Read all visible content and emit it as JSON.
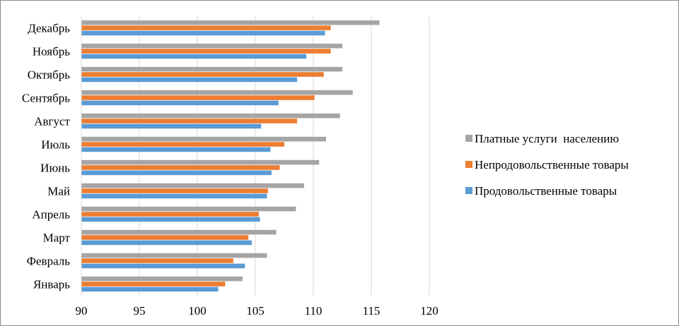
{
  "chart_data": {
    "type": "bar",
    "orientation": "horizontal",
    "categories": [
      "Январь",
      "Февраль",
      "Март",
      "Апрель",
      "Май",
      "Июнь",
      "Июль",
      "Август",
      "Сентябрь",
      "Октябрь",
      "Ноябрь",
      "Декабрь"
    ],
    "series": [
      {
        "name": "Продовольственные товары",
        "color": "#5b9bd5",
        "values": [
          101.8,
          104.1,
          104.7,
          105.4,
          106.0,
          106.4,
          106.3,
          105.5,
          107.0,
          108.6,
          109.4,
          111.0
        ]
      },
      {
        "name": "Непродовольственные товары",
        "color": "#ed7d31",
        "values": [
          102.4,
          103.1,
          104.4,
          105.3,
          106.1,
          107.1,
          107.5,
          108.6,
          110.1,
          110.9,
          111.5,
          111.5
        ]
      },
      {
        "name": "Платные услуги  населению",
        "color": "#a5a5a5",
        "values": [
          103.9,
          106.0,
          106.8,
          108.5,
          109.2,
          110.5,
          111.1,
          112.3,
          113.4,
          112.5,
          112.5,
          115.7
        ]
      }
    ],
    "xlim": [
      90,
      120
    ],
    "xticks": [
      90,
      95,
      100,
      105,
      110,
      115,
      120
    ],
    "grid": true,
    "legend_position": "right",
    "title": "",
    "xlabel": "",
    "ylabel": ""
  }
}
